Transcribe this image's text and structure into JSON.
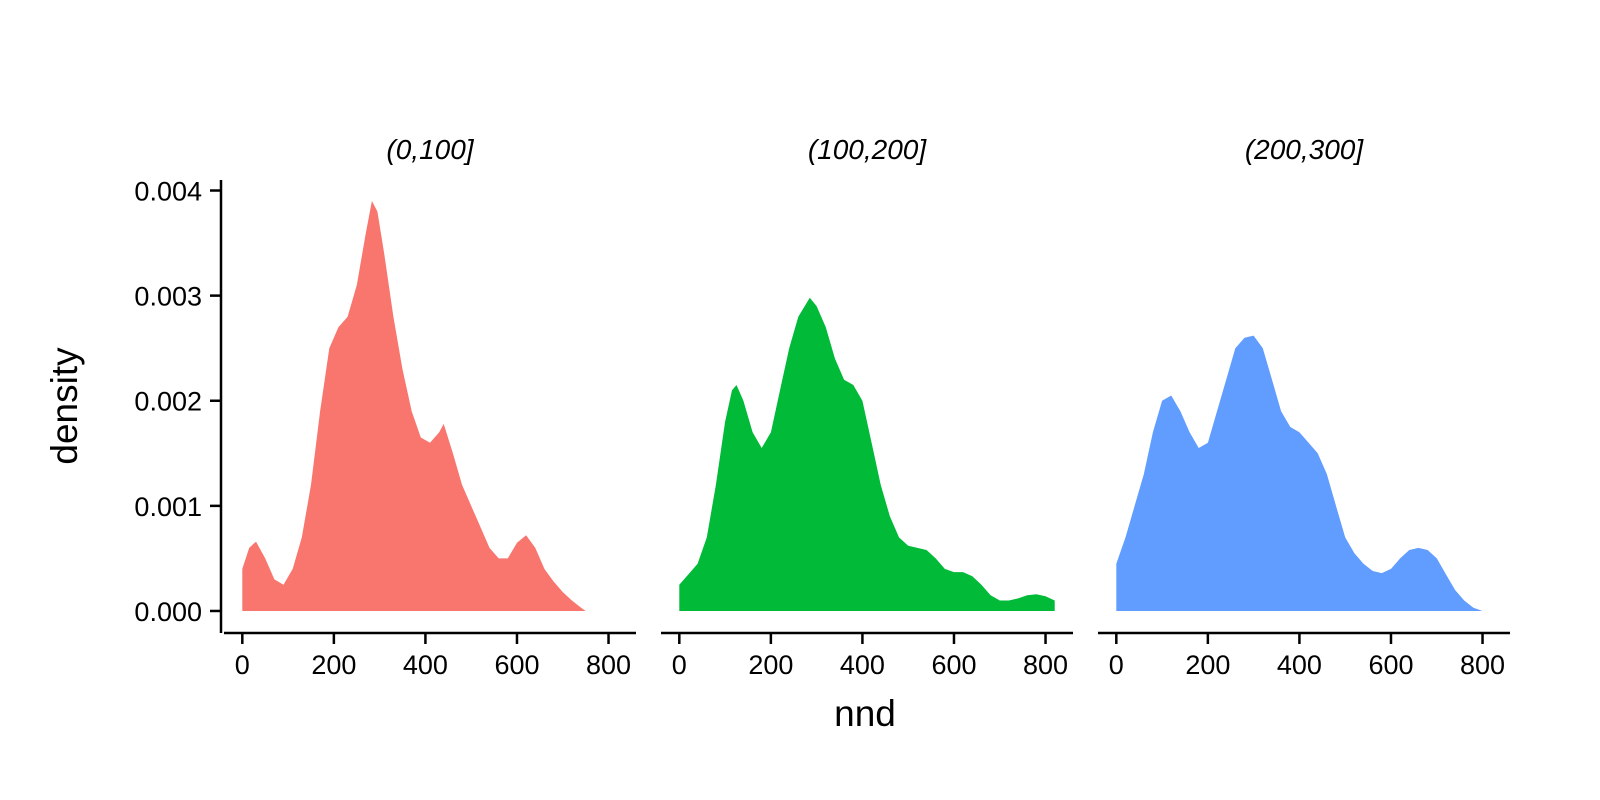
{
  "chart_data": {
    "type": "area",
    "subtype": "faceted density",
    "xlabel": "nnd",
    "ylabel": "density",
    "xlim": [
      -40,
      860
    ],
    "ylim": [
      -0.0002,
      0.0041
    ],
    "x_ticks": [
      0,
      200,
      400,
      600,
      800
    ],
    "y_ticks": [
      0.0,
      0.001,
      0.002,
      0.003,
      0.004
    ],
    "x_tick_labels": [
      "0",
      "200",
      "400",
      "600",
      "800"
    ],
    "y_tick_labels": [
      "0.000",
      "0.001",
      "0.002",
      "0.003",
      "0.004"
    ],
    "grid": false,
    "legend": "none",
    "facets": [
      {
        "label": "(0,100]",
        "color": "#F8766D",
        "points": [
          [
            0,
            0.0004
          ],
          [
            15,
            0.0006
          ],
          [
            30,
            0.00066
          ],
          [
            50,
            0.0005
          ],
          [
            70,
            0.0003
          ],
          [
            90,
            0.00025
          ],
          [
            110,
            0.0004
          ],
          [
            130,
            0.0007
          ],
          [
            150,
            0.0012
          ],
          [
            170,
            0.0019
          ],
          [
            190,
            0.0025
          ],
          [
            210,
            0.0027
          ],
          [
            230,
            0.0028
          ],
          [
            250,
            0.0031
          ],
          [
            270,
            0.0036
          ],
          [
            283,
            0.0039
          ],
          [
            295,
            0.0038
          ],
          [
            310,
            0.0034
          ],
          [
            330,
            0.0028
          ],
          [
            350,
            0.0023
          ],
          [
            370,
            0.0019
          ],
          [
            390,
            0.00165
          ],
          [
            410,
            0.0016
          ],
          [
            430,
            0.0017
          ],
          [
            440,
            0.00178
          ],
          [
            460,
            0.0015
          ],
          [
            480,
            0.0012
          ],
          [
            500,
            0.001
          ],
          [
            520,
            0.0008
          ],
          [
            540,
            0.0006
          ],
          [
            560,
            0.0005
          ],
          [
            580,
            0.0005
          ],
          [
            600,
            0.00065
          ],
          [
            620,
            0.00072
          ],
          [
            640,
            0.0006
          ],
          [
            660,
            0.0004
          ],
          [
            680,
            0.00028
          ],
          [
            700,
            0.00018
          ],
          [
            720,
            0.0001
          ],
          [
            740,
            3e-05
          ],
          [
            750,
            0.0
          ]
        ]
      },
      {
        "label": "(100,200]",
        "color": "#00BA38",
        "points": [
          [
            0,
            0.00025
          ],
          [
            20,
            0.00035
          ],
          [
            40,
            0.00045
          ],
          [
            60,
            0.0007
          ],
          [
            80,
            0.0012
          ],
          [
            100,
            0.0018
          ],
          [
            115,
            0.0021
          ],
          [
            125,
            0.00215
          ],
          [
            140,
            0.002
          ],
          [
            160,
            0.0017
          ],
          [
            180,
            0.00155
          ],
          [
            200,
            0.0017
          ],
          [
            220,
            0.0021
          ],
          [
            240,
            0.0025
          ],
          [
            260,
            0.0028
          ],
          [
            285,
            0.00298
          ],
          [
            300,
            0.0029
          ],
          [
            320,
            0.0027
          ],
          [
            340,
            0.0024
          ],
          [
            360,
            0.0022
          ],
          [
            380,
            0.00215
          ],
          [
            400,
            0.002
          ],
          [
            420,
            0.0016
          ],
          [
            440,
            0.0012
          ],
          [
            460,
            0.0009
          ],
          [
            480,
            0.0007
          ],
          [
            500,
            0.00062
          ],
          [
            520,
            0.0006
          ],
          [
            540,
            0.00058
          ],
          [
            560,
            0.0005
          ],
          [
            580,
            0.0004
          ],
          [
            600,
            0.00037
          ],
          [
            620,
            0.00037
          ],
          [
            640,
            0.00033
          ],
          [
            660,
            0.00025
          ],
          [
            680,
            0.00015
          ],
          [
            700,
            0.0001
          ],
          [
            720,
            0.0001
          ],
          [
            740,
            0.00012
          ],
          [
            760,
            0.00015
          ],
          [
            780,
            0.00016
          ],
          [
            800,
            0.00014
          ],
          [
            820,
            0.0001
          ]
        ]
      },
      {
        "label": "(200,300]",
        "color": "#619CFF",
        "points": [
          [
            0,
            0.00045
          ],
          [
            20,
            0.0007
          ],
          [
            40,
            0.001
          ],
          [
            60,
            0.0013
          ],
          [
            80,
            0.0017
          ],
          [
            100,
            0.002
          ],
          [
            120,
            0.00205
          ],
          [
            140,
            0.0019
          ],
          [
            160,
            0.0017
          ],
          [
            180,
            0.00155
          ],
          [
            200,
            0.0016
          ],
          [
            220,
            0.0019
          ],
          [
            240,
            0.0022
          ],
          [
            260,
            0.0025
          ],
          [
            280,
            0.0026
          ],
          [
            300,
            0.00262
          ],
          [
            320,
            0.0025
          ],
          [
            340,
            0.0022
          ],
          [
            360,
            0.0019
          ],
          [
            380,
            0.00175
          ],
          [
            400,
            0.0017
          ],
          [
            420,
            0.0016
          ],
          [
            440,
            0.0015
          ],
          [
            460,
            0.0013
          ],
          [
            480,
            0.001
          ],
          [
            500,
            0.0007
          ],
          [
            520,
            0.00055
          ],
          [
            540,
            0.00045
          ],
          [
            560,
            0.00038
          ],
          [
            580,
            0.00036
          ],
          [
            600,
            0.0004
          ],
          [
            620,
            0.0005
          ],
          [
            640,
            0.00058
          ],
          [
            660,
            0.0006
          ],
          [
            680,
            0.00058
          ],
          [
            700,
            0.0005
          ],
          [
            720,
            0.00035
          ],
          [
            740,
            0.0002
          ],
          [
            760,
            0.0001
          ],
          [
            780,
            3e-05
          ],
          [
            800,
            0.0
          ]
        ]
      }
    ]
  }
}
